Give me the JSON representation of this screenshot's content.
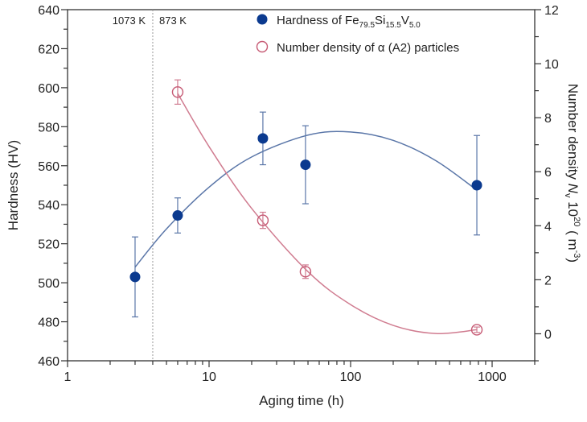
{
  "chart_data": {
    "type": "scatter",
    "xlabel": "Aging time (h)",
    "ylabel": "Hardness (HV)",
    "y2label": {
      "main": "Number density ",
      "italic": "N",
      "sub": "v",
      "mid": " 10",
      "sup": "20",
      "unit": " ( m",
      "unitsup": "-3",
      "end": ")"
    },
    "xscale": "log",
    "xlim": [
      1,
      2000
    ],
    "ylim": [
      460,
      640
    ],
    "y2lim": [
      -1,
      12
    ],
    "xticks": [
      1,
      10,
      100,
      1000
    ],
    "xtick_labels": [
      "1",
      "10",
      "100",
      "1000"
    ],
    "yticks": [
      460,
      480,
      500,
      520,
      540,
      560,
      580,
      600,
      620,
      640
    ],
    "y2ticks": [
      0,
      2,
      4,
      6,
      8,
      10,
      12
    ],
    "grid": false,
    "legend_placement": "top-right",
    "annotations": {
      "divider_x": 4,
      "left_label": "1073 K",
      "right_label": "873 K"
    },
    "series": [
      {
        "name": "Hardness of Fe79.5Si15.5V5.0",
        "legend": {
          "base": "Hardness of Fe",
          "s1": "79.5",
          "e1": "Si",
          "s2": "15.5",
          "e2": "V",
          "s3": "5.0"
        },
        "axis": "left",
        "marker": "filled-circle",
        "color": "#0b3a8f",
        "line_color": "#5a76a8",
        "x": [
          3,
          6,
          24,
          48,
          780
        ],
        "y": [
          503,
          534.5,
          574,
          560.5,
          550
        ],
        "err": [
          20.5,
          9,
          13.5,
          20,
          25.5
        ],
        "fit": {
          "x": [
            3,
            5,
            10,
            20,
            50,
            100,
            200,
            400,
            780
          ],
          "y": [
            508,
            527.6,
            549,
            564.5,
            575.7,
            577.3,
            573,
            562.6,
            547.5
          ]
        }
      },
      {
        "name": "Number density of α (A2) particles",
        "axis": "right",
        "marker": "open-circle",
        "color": "#c65a74",
        "line_color": "#d07c90",
        "x": [
          6,
          24,
          48,
          780
        ],
        "y": [
          8.95,
          4.2,
          2.3,
          0.15
        ],
        "err": [
          0.45,
          0.3,
          0.25,
          0.1
        ],
        "fit": {
          "x": [
            6,
            10,
            20,
            50,
            100,
            200,
            400,
            780
          ],
          "y": [
            8.9,
            6.93,
            4.64,
            2.3,
            1.08,
            0.31,
            0.01,
            0.15
          ]
        }
      }
    ]
  }
}
